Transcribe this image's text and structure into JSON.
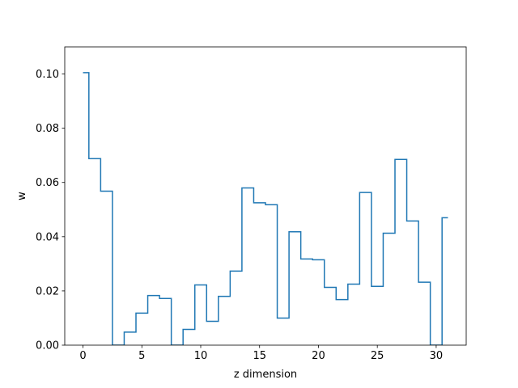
{
  "chart_data": {
    "type": "line",
    "drawstyle": "steps-mid",
    "title": "",
    "xlabel": "z dimension",
    "ylabel": "w",
    "xlim": [
      -1.55,
      32.55
    ],
    "ylim": [
      0,
      0.11
    ],
    "xticks": [
      0,
      5,
      10,
      15,
      20,
      25,
      30
    ],
    "xtick_labels": [
      "0",
      "5",
      "10",
      "15",
      "20",
      "25",
      "30"
    ],
    "yticks": [
      0,
      0.02,
      0.04,
      0.06,
      0.08,
      0.1
    ],
    "ytick_labels": [
      "0.00",
      "0.02",
      "0.04",
      "0.06",
      "0.08",
      "0.10"
    ],
    "grid": false,
    "series": [
      {
        "color": "#1f77b4",
        "x": [
          0,
          1,
          2,
          3,
          4,
          5,
          6,
          7,
          8,
          9,
          10,
          11,
          12,
          13,
          14,
          15,
          16,
          17,
          18,
          19,
          20,
          21,
          22,
          23,
          24,
          25,
          26,
          27,
          28,
          29,
          30,
          31
        ],
        "y": [
          0.1005,
          0.0688,
          0.0568,
          0.0,
          0.0048,
          0.0118,
          0.0183,
          0.0172,
          0.0,
          0.0058,
          0.0222,
          0.0088,
          0.018,
          0.0273,
          0.058,
          0.0525,
          0.0518,
          0.01,
          0.0418,
          0.0318,
          0.0315,
          0.0213,
          0.0168,
          0.0225,
          0.0563,
          0.0217,
          0.0413,
          0.0685,
          0.0458,
          0.0232,
          0.0,
          0.047
        ]
      }
    ]
  }
}
